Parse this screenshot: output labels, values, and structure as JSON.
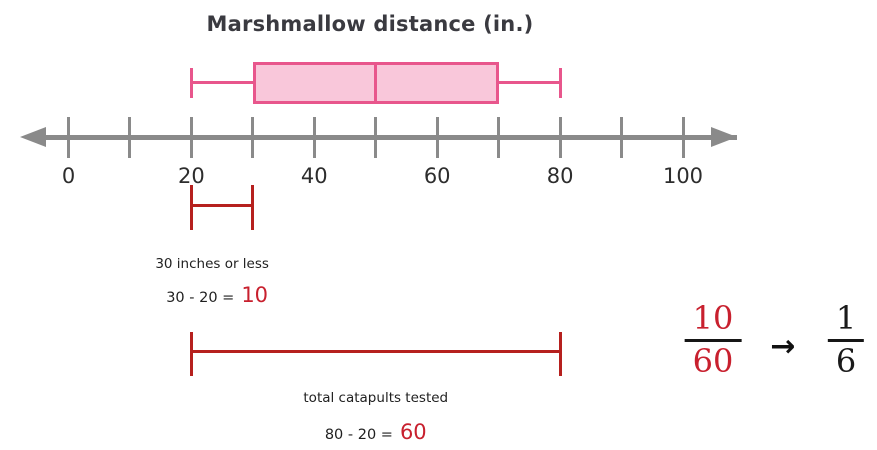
{
  "chart_data": {
    "type": "boxplot",
    "title": "Marshmallow distance (in.)",
    "axis": {
      "min": 0,
      "max": 100,
      "tick_step": 10,
      "ticks": [
        0,
        10,
        20,
        30,
        40,
        50,
        60,
        70,
        80,
        90,
        100
      ],
      "labeled_ticks": [
        0,
        20,
        40,
        60,
        80,
        100
      ],
      "arrows": "both-ends"
    },
    "box": {
      "min": 20,
      "q1": 30,
      "median": 50,
      "q3": 70,
      "max": 80
    },
    "colors": {
      "box_fill": "#f9c7da",
      "box_border": "#e8568c",
      "axis_gray": "#8a8a8a",
      "bracket_red": "#b6201e",
      "value_red": "#c8202e",
      "text_dark": "#2d2d2d"
    }
  },
  "annotations": {
    "range1": {
      "from": 20,
      "to": 30,
      "label": "30 inches or less",
      "equation": "30 - 20 =",
      "result": "10"
    },
    "range2": {
      "from": 20,
      "to": 80,
      "label": "total catapults tested",
      "equation": "80 - 20 =",
      "result": "60"
    }
  },
  "fraction": {
    "numerator": "10",
    "denominator": "60",
    "arrow": "→",
    "simplified_numerator": "1",
    "simplified_denominator": "6"
  }
}
